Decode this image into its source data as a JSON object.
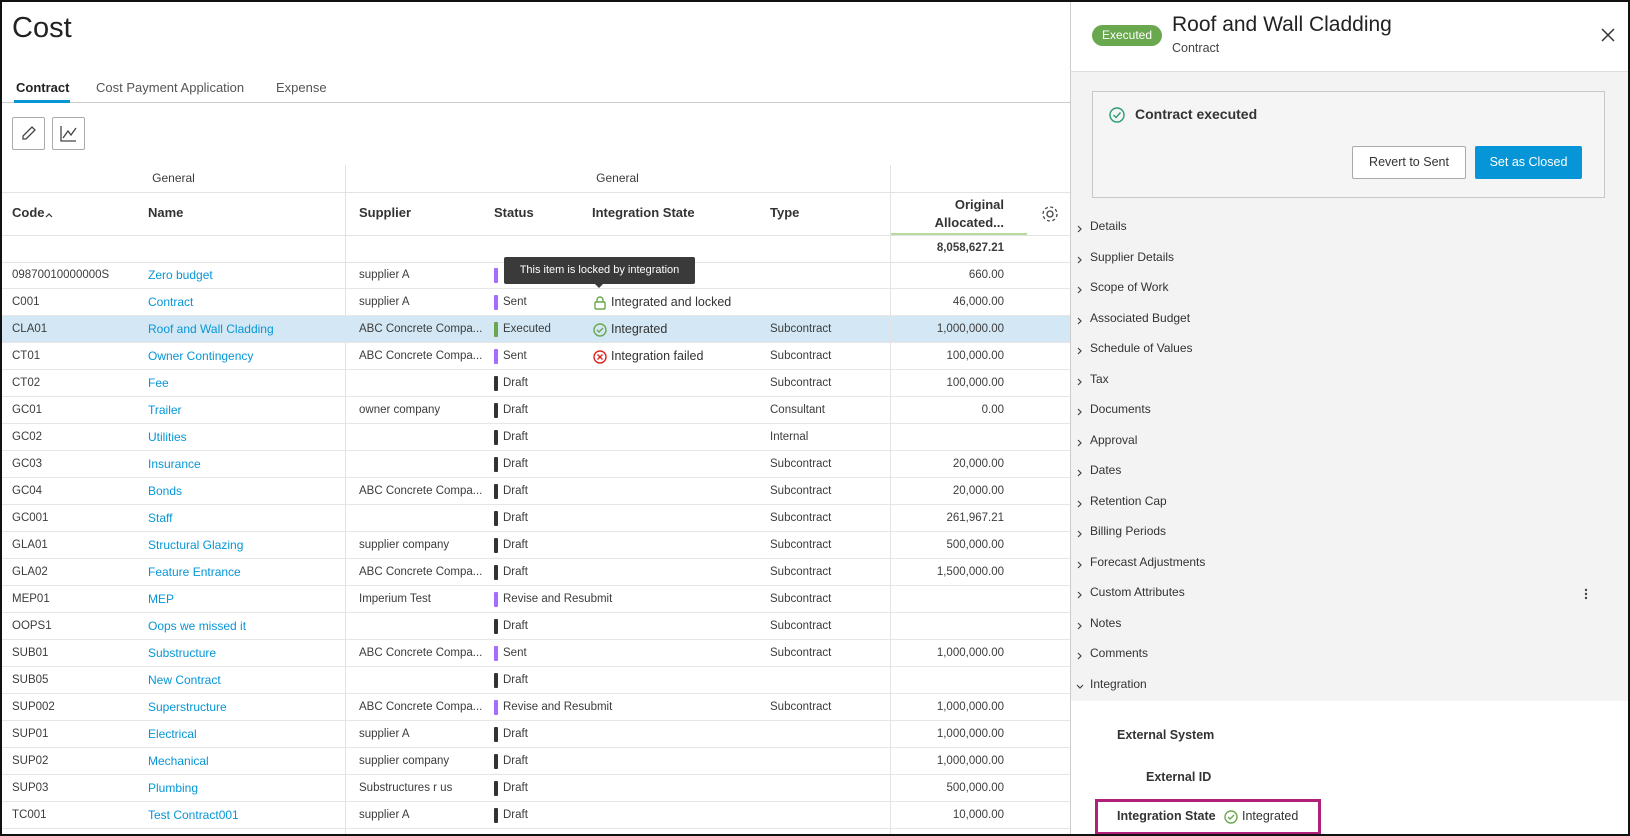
{
  "header": {
    "title": "Cost"
  },
  "tabs": [
    "Contract",
    "Cost Payment Application",
    "Expense"
  ],
  "table": {
    "group_headers": [
      "General",
      "General"
    ],
    "columns": [
      "Code",
      "Name",
      "Supplier",
      "Status",
      "Integration State",
      "Type",
      "Original Allocated..."
    ],
    "total": "8,058,627.21",
    "tooltip": "This item is locked by integration",
    "rows": [
      {
        "code": "09870010000000S",
        "name": "Zero budget",
        "supplier": "supplier A",
        "status": null,
        "status_color": "#a66cff",
        "integration": null,
        "icon": null,
        "type": null,
        "amount": "660.00"
      },
      {
        "code": "C001",
        "name": "Contract",
        "supplier": "supplier A",
        "status": "Sent",
        "status_color": "#a66cff",
        "integration": "Integrated and locked",
        "icon": "lock",
        "type": null,
        "amount": "46,000.00"
      },
      {
        "code": "CLA01",
        "name": "Roof and Wall Cladding",
        "supplier": "ABC Concrete Compa...",
        "status": "Executed",
        "status_color": "#6aa84f",
        "integration": "Integrated",
        "icon": "check",
        "type": "Subcontract",
        "amount": "1,000,000.00"
      },
      {
        "code": "CT01",
        "name": "Owner Contingency",
        "supplier": "ABC Concrete Compa...",
        "status": "Sent",
        "status_color": "#a66cff",
        "integration": "Integration failed",
        "icon": "error",
        "type": "Subcontract",
        "amount": "100,000.00"
      },
      {
        "code": "CT02",
        "name": "Fee",
        "supplier": null,
        "status": "Draft",
        "status_color": "#333333",
        "integration": null,
        "icon": null,
        "type": "Subcontract",
        "amount": "100,000.00"
      },
      {
        "code": "GC01",
        "name": "Trailer",
        "supplier": "owner company",
        "status": "Draft",
        "status_color": "#333333",
        "integration": null,
        "icon": null,
        "type": "Consultant",
        "amount": "0.00"
      },
      {
        "code": "GC02",
        "name": "Utilities",
        "supplier": null,
        "status": "Draft",
        "status_color": "#333333",
        "integration": null,
        "icon": null,
        "type": "Internal",
        "amount": null
      },
      {
        "code": "GC03",
        "name": "Insurance",
        "supplier": null,
        "status": "Draft",
        "status_color": "#333333",
        "integration": null,
        "icon": null,
        "type": "Subcontract",
        "amount": "20,000.00"
      },
      {
        "code": "GC04",
        "name": "Bonds",
        "supplier": "ABC Concrete Compa...",
        "status": "Draft",
        "status_color": "#333333",
        "integration": null,
        "icon": null,
        "type": "Subcontract",
        "amount": "20,000.00"
      },
      {
        "code": "GC001",
        "name": "Staff",
        "supplier": null,
        "status": "Draft",
        "status_color": "#333333",
        "integration": null,
        "icon": null,
        "type": "Subcontract",
        "amount": "261,967.21"
      },
      {
        "code": "GLA01",
        "name": "Structural Glazing",
        "supplier": "supplier company",
        "status": "Draft",
        "status_color": "#333333",
        "integration": null,
        "icon": null,
        "type": "Subcontract",
        "amount": "500,000.00"
      },
      {
        "code": "GLA02",
        "name": "Feature Entrance",
        "supplier": "ABC Concrete Compa...",
        "status": "Draft",
        "status_color": "#333333",
        "integration": null,
        "icon": null,
        "type": "Subcontract",
        "amount": "1,500,000.00"
      },
      {
        "code": "MEP01",
        "name": "MEP",
        "supplier": "Imperium Test",
        "status": "Revise and Resubmit",
        "status_color": "#a66cff",
        "integration": null,
        "icon": null,
        "type": "Subcontract",
        "amount": null
      },
      {
        "code": "OOPS1",
        "name": "Oops we missed it",
        "supplier": null,
        "status": "Draft",
        "status_color": "#333333",
        "integration": null,
        "icon": null,
        "type": "Subcontract",
        "amount": null
      },
      {
        "code": "SUB01",
        "name": "Substructure",
        "supplier": "ABC Concrete Compa...",
        "status": "Sent",
        "status_color": "#a66cff",
        "integration": null,
        "icon": null,
        "type": "Subcontract",
        "amount": "1,000,000.00"
      },
      {
        "code": "SUB05",
        "name": "New Contract",
        "supplier": null,
        "status": "Draft",
        "status_color": "#333333",
        "integration": null,
        "icon": null,
        "type": null,
        "amount": null
      },
      {
        "code": "SUP002",
        "name": "Superstructure",
        "supplier": "ABC Concrete Compa...",
        "status": "Revise and Resubmit",
        "status_color": "#a66cff",
        "integration": null,
        "icon": null,
        "type": "Subcontract",
        "amount": "1,000,000.00"
      },
      {
        "code": "SUP01",
        "name": "Electrical",
        "supplier": "supplier A",
        "status": "Draft",
        "status_color": "#333333",
        "integration": null,
        "icon": null,
        "type": null,
        "amount": "1,000,000.00"
      },
      {
        "code": "SUP02",
        "name": "Mechanical",
        "supplier": "supplier company",
        "status": "Draft",
        "status_color": "#333333",
        "integration": null,
        "icon": null,
        "type": null,
        "amount": "1,000,000.00"
      },
      {
        "code": "SUP03",
        "name": "Plumbing",
        "supplier": "Substructures r us",
        "status": "Draft",
        "status_color": "#333333",
        "integration": null,
        "icon": null,
        "type": null,
        "amount": "500,000.00"
      },
      {
        "code": "TC001",
        "name": "Test Contract001",
        "supplier": "supplier A",
        "status": "Draft",
        "status_color": "#333333",
        "integration": null,
        "icon": null,
        "type": null,
        "amount": "10,000.00"
      }
    ]
  },
  "panel": {
    "badge": "Executed",
    "title": "Roof and Wall Cladding",
    "subtitle": "Contract",
    "alert": "Contract executed",
    "buttons": [
      "Revert to Sent",
      "Set as Closed"
    ],
    "sections": [
      "Details",
      "Supplier Details",
      "Scope of Work",
      "Associated Budget",
      "Schedule of Values",
      "Tax",
      "Documents",
      "Approval",
      "Dates",
      "Retention Cap",
      "Billing Periods",
      "Forecast Adjustments",
      "Custom Attributes",
      "Notes",
      "Comments",
      "Integration"
    ],
    "fields": [
      "External System",
      "External ID"
    ],
    "state_label": "Integration State",
    "state_value": "Integrated"
  }
}
